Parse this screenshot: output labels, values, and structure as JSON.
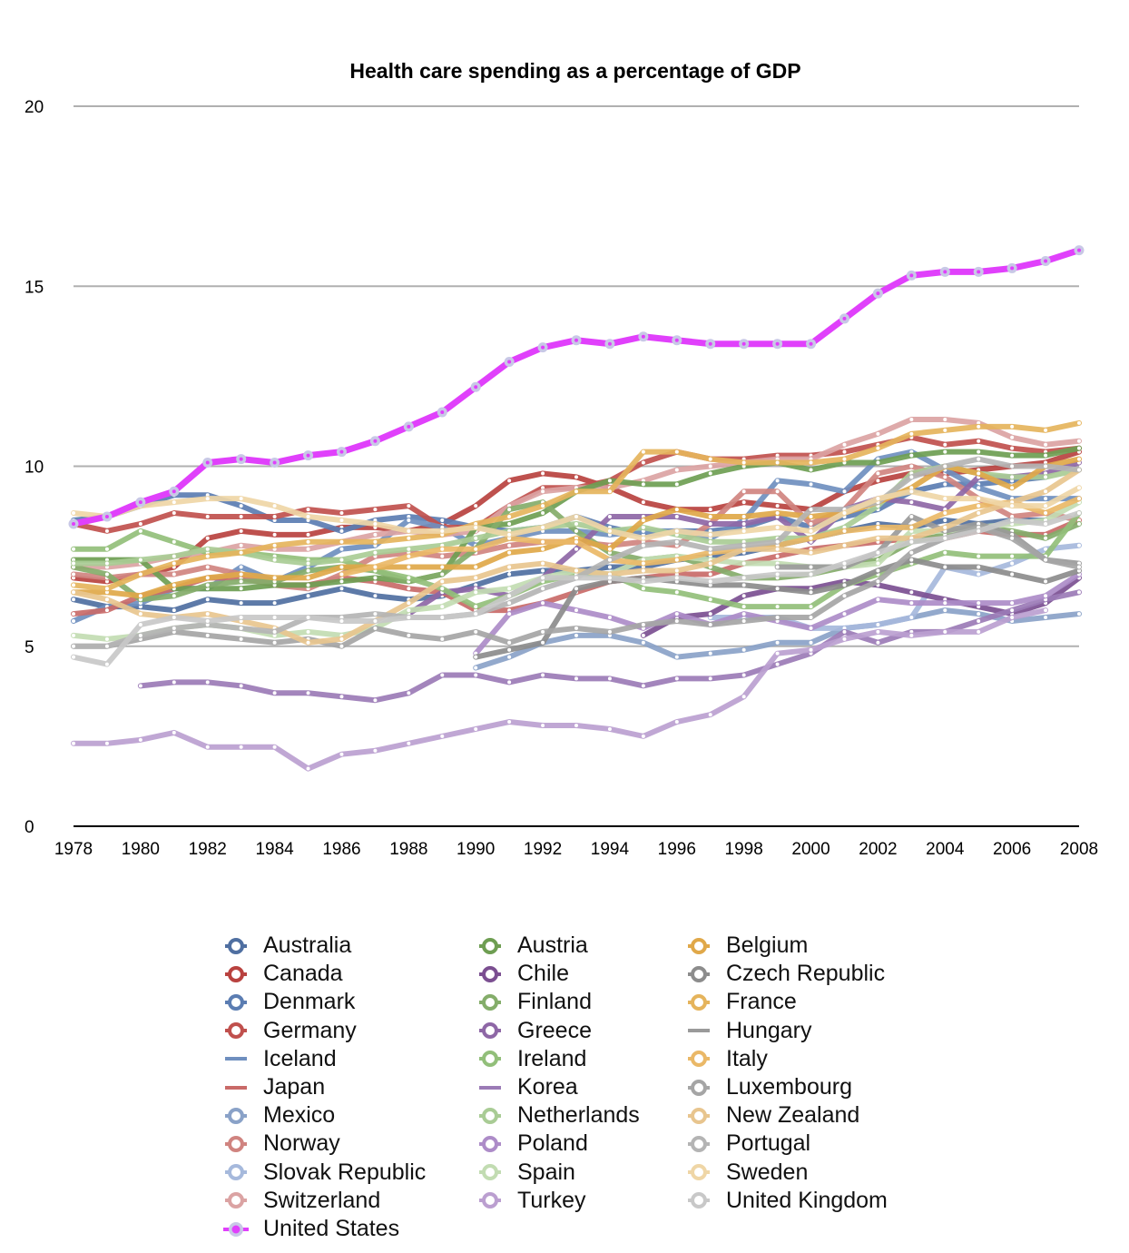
{
  "chart_data": {
    "type": "line",
    "title": "Health care spending as a percentage of GDP",
    "xlabel": "",
    "ylabel": "",
    "xlim": [
      1978,
      2008
    ],
    "ylim": [
      0,
      20
    ],
    "x_ticks": [
      "1978",
      "1980",
      "1982",
      "1984",
      "1986",
      "1988",
      "1990",
      "1992",
      "1994",
      "1996",
      "1998",
      "2000",
      "2002",
      "2004",
      "2006",
      "2008"
    ],
    "y_ticks": [
      "0",
      "5",
      "10",
      "15",
      "20"
    ],
    "grid": true,
    "legend_position": "bottom",
    "legend_columns": 3,
    "x": [
      1978,
      1979,
      1980,
      1981,
      1982,
      1983,
      1984,
      1985,
      1986,
      1987,
      1988,
      1989,
      1990,
      1991,
      1992,
      1993,
      1994,
      1995,
      1996,
      1997,
      1998,
      1999,
      2000,
      2001,
      2002,
      2003,
      2004,
      2005,
      2006,
      2007,
      2008
    ],
    "series": [
      {
        "name": "Australia",
        "color": "#4f6fa1",
        "marker": "ring",
        "values": [
          6.3,
          6.1,
          6.1,
          6.0,
          6.3,
          6.2,
          6.2,
          6.4,
          6.6,
          6.4,
          6.3,
          6.4,
          6.7,
          7.0,
          7.1,
          7.1,
          7.2,
          7.2,
          7.4,
          7.5,
          7.6,
          7.8,
          8.0,
          8.2,
          8.4,
          8.3,
          8.5,
          8.4,
          8.5,
          8.5,
          null
        ]
      },
      {
        "name": "Canada",
        "color": "#b9423f",
        "marker": "ring",
        "values": [
          6.9,
          6.8,
          7.0,
          7.2,
          8.0,
          8.2,
          8.1,
          8.1,
          8.3,
          8.3,
          8.2,
          8.4,
          8.9,
          9.6,
          9.8,
          9.7,
          9.4,
          9.0,
          8.8,
          8.8,
          9.0,
          8.9,
          8.8,
          9.3,
          9.6,
          9.8,
          9.8,
          9.9,
          10.0,
          10.1,
          10.4
        ]
      },
      {
        "name": "Denmark",
        "color": "#5b7db2",
        "marker": "ring",
        "values": [
          8.5,
          8.6,
          8.9,
          9.2,
          9.2,
          8.9,
          8.5,
          8.5,
          8.2,
          8.5,
          8.6,
          8.5,
          8.3,
          8.2,
          8.3,
          8.6,
          8.3,
          8.1,
          8.2,
          8.2,
          8.3,
          8.6,
          8.3,
          8.6,
          8.8,
          9.3,
          9.5,
          9.5,
          9.6,
          9.7,
          null
        ]
      },
      {
        "name": "Germany",
        "color": "#c0504d",
        "marker": "ring",
        "values": [
          8.4,
          8.2,
          8.4,
          8.7,
          8.6,
          8.6,
          8.6,
          8.8,
          8.7,
          8.8,
          8.9,
          8.3,
          8.3,
          8.9,
          9.4,
          9.4,
          9.6,
          10.1,
          10.4,
          10.2,
          10.2,
          10.3,
          10.3,
          10.4,
          10.6,
          10.8,
          10.6,
          10.7,
          10.5,
          10.4,
          10.5
        ]
      },
      {
        "name": "Iceland",
        "color": "#6f8fbf",
        "marker": "line",
        "values": [
          5.7,
          6.1,
          6.2,
          6.6,
          6.6,
          7.2,
          6.8,
          7.2,
          7.7,
          7.8,
          8.5,
          8.3,
          7.8,
          8.0,
          8.2,
          8.2,
          8.1,
          8.2,
          8.2,
          8.0,
          8.5,
          9.6,
          9.5,
          9.3,
          10.2,
          10.4,
          9.9,
          9.4,
          9.1,
          9.1,
          9.1
        ]
      },
      {
        "name": "Japan",
        "color": "#c96a68",
        "marker": "line",
        "values": [
          5.9,
          6.0,
          6.4,
          6.6,
          6.9,
          6.9,
          6.7,
          6.7,
          6.9,
          6.8,
          6.6,
          6.5,
          6.0,
          6.0,
          6.2,
          6.5,
          6.8,
          6.9,
          7.0,
          7.0,
          7.3,
          7.5,
          7.7,
          7.8,
          7.9,
          8.0,
          8.0,
          8.2,
          8.1,
          8.1,
          8.5
        ]
      },
      {
        "name": "Mexico",
        "color": "#8aa2c8",
        "marker": "ring",
        "values": [
          null,
          null,
          null,
          null,
          null,
          null,
          null,
          null,
          null,
          null,
          null,
          null,
          4.4,
          4.7,
          5.1,
          5.3,
          5.3,
          5.1,
          4.7,
          4.8,
          4.9,
          5.1,
          5.1,
          5.5,
          5.6,
          5.8,
          6.0,
          5.9,
          5.7,
          5.8,
          5.9
        ]
      },
      {
        "name": "Norway",
        "color": "#d08480",
        "marker": "ring",
        "values": [
          7.0,
          6.9,
          7.0,
          7.0,
          7.2,
          7.0,
          6.7,
          6.6,
          7.0,
          7.5,
          7.6,
          7.5,
          7.6,
          7.8,
          7.9,
          7.9,
          7.8,
          7.9,
          7.8,
          8.4,
          9.3,
          9.3,
          8.4,
          8.8,
          9.8,
          10.0,
          9.7,
          9.1,
          8.6,
          8.7,
          8.5
        ]
      },
      {
        "name": "Slovak Republic",
        "color": "#a6b9dc",
        "marker": "ring",
        "values": [
          null,
          null,
          null,
          null,
          null,
          null,
          null,
          null,
          null,
          null,
          null,
          null,
          null,
          null,
          null,
          null,
          null,
          null,
          null,
          5.8,
          5.8,
          5.8,
          5.5,
          5.5,
          5.6,
          5.8,
          7.2,
          7.0,
          7.3,
          7.7,
          7.8
        ]
      },
      {
        "name": "Switzerland",
        "color": "#dba3a3",
        "marker": "ring",
        "values": [
          7.2,
          7.2,
          7.3,
          7.5,
          7.6,
          7.8,
          7.7,
          7.7,
          7.9,
          8.1,
          8.2,
          8.1,
          8.2,
          8.9,
          9.3,
          9.4,
          9.4,
          9.6,
          9.9,
          10.0,
          10.1,
          10.2,
          10.2,
          10.6,
          10.9,
          11.3,
          11.3,
          11.2,
          10.8,
          10.6,
          10.7
        ]
      },
      {
        "name": "United States",
        "color": "#e040fb",
        "marker": "us",
        "values": [
          8.4,
          8.6,
          9.0,
          9.3,
          10.1,
          10.2,
          10.1,
          10.3,
          10.4,
          10.7,
          11.1,
          11.5,
          12.2,
          12.9,
          13.3,
          13.5,
          13.4,
          13.6,
          13.5,
          13.4,
          13.4,
          13.4,
          13.4,
          14.1,
          14.8,
          15.3,
          15.4,
          15.4,
          15.5,
          15.7,
          16.0
        ]
      },
      {
        "name": "Austria",
        "color": "#6e9e52",
        "marker": "ring",
        "values": [
          7.4,
          7.4,
          7.4,
          6.6,
          6.6,
          6.6,
          6.7,
          6.7,
          6.8,
          6.9,
          6.8,
          7.0,
          8.3,
          8.4,
          8.7,
          9.3,
          9.6,
          9.5,
          9.5,
          9.8,
          10.0,
          10.1,
          9.9,
          10.1,
          10.1,
          10.3,
          10.4,
          10.4,
          10.3,
          10.3,
          10.5
        ]
      },
      {
        "name": "Chile",
        "color": "#7b4f91",
        "marker": "ring",
        "values": [
          null,
          null,
          null,
          null,
          null,
          null,
          null,
          null,
          null,
          null,
          null,
          null,
          null,
          null,
          null,
          null,
          null,
          5.3,
          5.8,
          5.9,
          6.4,
          6.6,
          6.6,
          6.8,
          6.7,
          6.5,
          6.3,
          6.1,
          5.9,
          6.2,
          6.9
        ]
      },
      {
        "name": "Finland",
        "color": "#84ad6a",
        "marker": "ring",
        "values": [
          7.2,
          7.0,
          6.3,
          6.4,
          6.7,
          6.8,
          6.8,
          7.1,
          7.2,
          7.1,
          6.8,
          7.0,
          7.7,
          8.8,
          9.0,
          8.2,
          7.6,
          7.4,
          7.5,
          7.2,
          6.9,
          6.9,
          7.0,
          7.2,
          7.4,
          7.9,
          8.1,
          8.3,
          8.2,
          8.0,
          8.4
        ]
      },
      {
        "name": "Greece",
        "color": "#8e67a6",
        "marker": "ring",
        "values": [
          null,
          null,
          5.9,
          null,
          null,
          null,
          null,
          null,
          null,
          null,
          5.9,
          6.5,
          6.6,
          6.4,
          6.9,
          7.7,
          8.6,
          8.6,
          8.6,
          8.4,
          8.4,
          8.6,
          7.9,
          8.8,
          9.1,
          9.0,
          8.8,
          9.7,
          9.7,
          9.8,
          10.1
        ]
      },
      {
        "name": "Ireland",
        "color": "#92bf7a",
        "marker": "ring",
        "values": [
          7.7,
          7.7,
          8.2,
          7.9,
          7.6,
          7.6,
          7.5,
          7.4,
          7.4,
          7.1,
          6.9,
          6.6,
          6.1,
          6.4,
          6.8,
          7.0,
          7.0,
          6.6,
          6.5,
          6.3,
          6.1,
          6.1,
          6.1,
          6.7,
          7.0,
          7.3,
          7.6,
          7.5,
          7.5,
          7.5,
          8.7
        ]
      },
      {
        "name": "Korea",
        "color": "#9b7bb6",
        "marker": "line",
        "values": [
          null,
          null,
          3.9,
          4.0,
          4.0,
          3.9,
          3.7,
          3.7,
          3.6,
          3.5,
          3.7,
          4.2,
          4.2,
          4.0,
          4.2,
          4.1,
          4.1,
          3.9,
          4.1,
          4.1,
          4.2,
          4.5,
          4.8,
          5.4,
          5.1,
          5.4,
          5.4,
          5.7,
          6.0,
          6.3,
          6.5
        ]
      },
      {
        "name": "Netherlands",
        "color": "#a9cc95",
        "marker": "ring",
        "values": [
          7.3,
          7.3,
          7.4,
          7.5,
          7.7,
          7.6,
          7.4,
          7.3,
          7.4,
          7.6,
          7.7,
          7.8,
          8.0,
          8.2,
          8.3,
          8.4,
          8.2,
          8.3,
          8.1,
          7.9,
          7.9,
          8.0,
          8.0,
          8.3,
          8.9,
          9.8,
          10.0,
          9.8,
          9.7,
          9.7,
          9.9
        ]
      },
      {
        "name": "Poland",
        "color": "#ad8cc8",
        "marker": "ring",
        "values": [
          null,
          null,
          null,
          null,
          null,
          null,
          null,
          null,
          null,
          null,
          null,
          null,
          4.8,
          5.9,
          6.2,
          6.0,
          5.8,
          5.5,
          5.9,
          5.6,
          5.9,
          5.7,
          5.5,
          5.9,
          6.3,
          6.2,
          6.2,
          6.2,
          6.2,
          6.4,
          7.0
        ]
      },
      {
        "name": "Spain",
        "color": "#c2dcb2",
        "marker": "ring",
        "values": [
          5.3,
          5.2,
          5.3,
          5.5,
          5.6,
          5.5,
          5.3,
          5.4,
          5.3,
          5.5,
          6.0,
          6.1,
          6.5,
          6.6,
          6.9,
          7.1,
          7.0,
          7.4,
          7.5,
          7.4,
          7.3,
          7.3,
          7.2,
          7.2,
          7.3,
          8.2,
          8.2,
          8.3,
          8.4,
          8.5,
          9.0
        ]
      },
      {
        "name": "Turkey",
        "color": "#bb9fd0",
        "marker": "ring",
        "values": [
          2.3,
          2.3,
          2.4,
          2.6,
          2.2,
          2.2,
          2.2,
          1.6,
          2.0,
          2.1,
          2.3,
          2.5,
          2.7,
          2.9,
          2.8,
          2.8,
          2.7,
          2.5,
          2.9,
          3.1,
          3.6,
          4.8,
          4.9,
          5.2,
          5.4,
          5.3,
          5.4,
          5.4,
          5.8,
          6.0,
          null
        ]
      },
      {
        "name": "Belgium",
        "color": "#e0a849",
        "marker": "ring",
        "values": [
          6.5,
          6.5,
          6.4,
          6.7,
          6.9,
          7.0,
          6.9,
          6.9,
          7.2,
          7.2,
          7.2,
          7.2,
          7.2,
          7.6,
          7.7,
          8.0,
          7.7,
          8.5,
          8.8,
          8.6,
          8.6,
          8.7,
          8.6,
          8.7,
          9.0,
          9.4,
          10.0,
          9.8,
          9.4,
          10.0,
          10.2
        ]
      },
      {
        "name": "Czech Republic",
        "color": "#8c8c8c",
        "marker": "ring",
        "values": [
          null,
          null,
          null,
          null,
          null,
          null,
          null,
          null,
          null,
          null,
          null,
          null,
          4.7,
          4.9,
          5.1,
          6.6,
          6.8,
          6.9,
          6.8,
          6.7,
          6.7,
          6.6,
          6.5,
          6.7,
          7.1,
          7.4,
          7.2,
          7.2,
          7.0,
          6.8,
          7.1
        ]
      },
      {
        "name": "France",
        "color": "#e5b45c",
        "marker": "ring",
        "values": [
          6.7,
          6.6,
          7.0,
          7.3,
          7.5,
          7.6,
          7.8,
          7.9,
          7.9,
          7.9,
          8.0,
          8.1,
          8.4,
          8.6,
          8.9,
          9.3,
          9.3,
          10.4,
          10.4,
          10.2,
          10.1,
          10.1,
          10.1,
          10.2,
          10.5,
          10.9,
          11.0,
          11.1,
          11.1,
          11.0,
          11.2
        ]
      },
      {
        "name": "Hungary",
        "color": "#9a9a9a",
        "marker": "line",
        "values": [
          null,
          null,
          null,
          null,
          null,
          null,
          null,
          null,
          null,
          null,
          null,
          null,
          null,
          7.1,
          null,
          null,
          null,
          null,
          null,
          null,
          null,
          7.2,
          7.2,
          7.2,
          7.6,
          8.6,
          8.2,
          8.4,
          8.1,
          7.4,
          7.3
        ]
      },
      {
        "name": "Italy",
        "color": "#eab867",
        "marker": "ring",
        "values": [
          null,
          null,
          null,
          null,
          null,
          null,
          null,
          null,
          7.0,
          7.2,
          7.5,
          7.7,
          7.7,
          8.0,
          7.9,
          7.9,
          7.4,
          7.3,
          7.4,
          7.6,
          7.7,
          7.8,
          8.0,
          8.2,
          8.3,
          8.3,
          8.7,
          8.9,
          9.0,
          8.7,
          9.1
        ]
      },
      {
        "name": "Luxembourg",
        "color": "#a5a5a5",
        "marker": "ring",
        "values": [
          5.0,
          5.0,
          5.2,
          5.4,
          5.3,
          5.2,
          5.1,
          5.2,
          5.0,
          5.5,
          5.3,
          5.2,
          5.4,
          5.1,
          5.4,
          5.5,
          5.4,
          5.6,
          5.7,
          5.6,
          5.7,
          5.8,
          5.8,
          6.4,
          6.8,
          7.6,
          8.0,
          8.3,
          8.0,
          7.4,
          7.2
        ]
      },
      {
        "name": "New Zealand",
        "color": "#e8c58e",
        "marker": "ring",
        "values": [
          6.5,
          6.3,
          5.9,
          5.8,
          5.9,
          5.7,
          5.5,
          5.1,
          5.2,
          5.7,
          6.2,
          6.8,
          6.9,
          7.2,
          7.3,
          7.1,
          7.0,
          7.1,
          7.1,
          7.3,
          7.7,
          7.7,
          7.6,
          7.8,
          8.0,
          8.0,
          8.3,
          8.7,
          9.0,
          9.3,
          9.9
        ]
      },
      {
        "name": "Portugal",
        "color": "#b4b4b4",
        "marker": "ring",
        "values": [
          5.0,
          5.0,
          5.3,
          5.5,
          5.6,
          5.5,
          5.4,
          5.8,
          5.8,
          5.9,
          5.8,
          5.8,
          5.9,
          6.2,
          6.6,
          6.9,
          7.4,
          7.8,
          7.9,
          7.7,
          7.8,
          7.9,
          8.8,
          8.8,
          9.0,
          9.7,
          10.0,
          10.2,
          10.0,
          10.0,
          9.9
        ]
      },
      {
        "name": "Sweden",
        "color": "#efd6a6",
        "marker": "ring",
        "values": [
          8.7,
          8.6,
          8.9,
          9.0,
          9.1,
          9.1,
          8.9,
          8.6,
          8.5,
          8.4,
          8.2,
          8.2,
          8.3,
          8.1,
          8.3,
          8.6,
          8.2,
          8.0,
          8.2,
          8.1,
          8.2,
          8.3,
          8.2,
          8.7,
          9.1,
          9.3,
          9.1,
          9.1,
          8.9,
          8.9,
          9.4
        ]
      },
      {
        "name": "United Kingdom",
        "color": "#c8c8c8",
        "marker": "ring",
        "values": [
          4.7,
          4.5,
          5.6,
          5.8,
          5.7,
          5.8,
          5.8,
          5.8,
          5.7,
          5.7,
          5.8,
          5.8,
          5.9,
          6.4,
          6.9,
          6.9,
          6.9,
          6.8,
          6.9,
          6.8,
          6.9,
          7.0,
          7.0,
          7.3,
          7.6,
          7.9,
          8.0,
          8.2,
          8.5,
          8.4,
          8.7
        ]
      }
    ]
  }
}
